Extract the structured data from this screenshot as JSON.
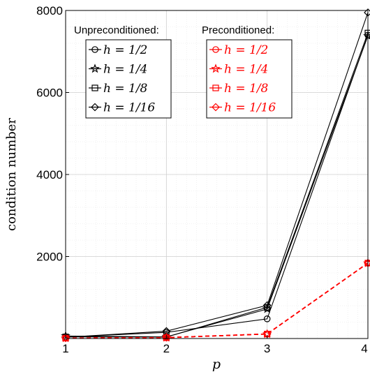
{
  "chart_data": {
    "type": "line",
    "xlabel": "p",
    "ylabel": "condition number",
    "x": [
      1,
      2,
      3,
      4
    ],
    "xlim": [
      1,
      4
    ],
    "ylim": [
      0,
      8000
    ],
    "xticks": [
      "1",
      "2",
      "3",
      "4"
    ],
    "yticks": [
      "2000",
      "4000",
      "6000",
      "8000"
    ],
    "ytick_values": [
      2000,
      4000,
      6000,
      8000
    ],
    "grid": true,
    "minor_grid": true,
    "legends": [
      {
        "title": "Unpreconditioned:",
        "placement": "top-left"
      },
      {
        "title": "Preconditioned:",
        "placement": "top-center"
      }
    ],
    "series": [
      {
        "name": "h = 1/2",
        "group": "Unpreconditioned",
        "marker": "circle",
        "color": "#000000",
        "dash": "solid",
        "values": [
          35,
          150,
          480,
          7400
        ]
      },
      {
        "name": "h = 1/4",
        "group": "Unpreconditioned",
        "marker": "star",
        "color": "#000000",
        "dash": "solid",
        "values": [
          60,
          40,
          720,
          7380
        ]
      },
      {
        "name": "h = 1/8",
        "group": "Unpreconditioned",
        "marker": "square",
        "color": "#000000",
        "dash": "solid",
        "values": [
          40,
          35,
          760,
          7450
        ]
      },
      {
        "name": "h = 1/16",
        "group": "Unpreconditioned",
        "marker": "diamond",
        "color": "#000000",
        "dash": "solid",
        "values": [
          30,
          180,
          810,
          7950
        ]
      },
      {
        "name": "h = 1/2",
        "group": "Preconditioned",
        "marker": "circle",
        "color": "#ff0000",
        "dash": "dashed",
        "values": [
          10,
          22,
          110,
          1840
        ]
      },
      {
        "name": "h = 1/4",
        "group": "Preconditioned",
        "marker": "star",
        "color": "#ff0000",
        "dash": "dashed",
        "values": [
          10,
          22,
          110,
          1840
        ]
      },
      {
        "name": "h = 1/8",
        "group": "Preconditioned",
        "marker": "square",
        "color": "#ff0000",
        "dash": "dashed",
        "values": [
          10,
          22,
          110,
          1840
        ]
      },
      {
        "name": "h = 1/16",
        "group": "Preconditioned",
        "marker": "diamond",
        "color": "#ff0000",
        "dash": "dashed",
        "values": [
          10,
          22,
          110,
          1840
        ]
      }
    ]
  }
}
